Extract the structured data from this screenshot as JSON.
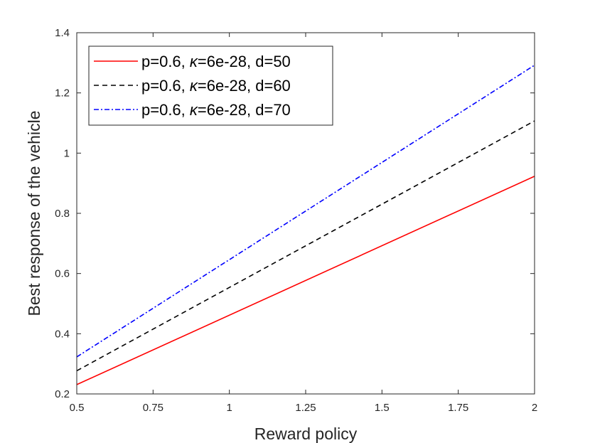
{
  "chart_data": {
    "type": "line",
    "title": "",
    "xlabel": "Reward policy",
    "ylabel": "Best response of the vehicle",
    "xlim": [
      0.5,
      2
    ],
    "ylim": [
      0.2,
      1.4
    ],
    "x_ticks": [
      "0.5",
      "0.75",
      "1",
      "1.25",
      "1.5",
      "1.75",
      "2"
    ],
    "y_ticks": [
      "0.2",
      "0.4",
      "0.6",
      "0.8",
      "1",
      "1.2",
      "1.4"
    ],
    "grid": false,
    "legend_position": "top-left",
    "series": [
      {
        "name": "p=0.6, κ=6e-28, d=50",
        "label_parts": [
          "p=0.6, ",
          "κ",
          "=6e-28, d=50"
        ],
        "color": "#ff0000",
        "style": "solid",
        "x": [
          0.5,
          2
        ],
        "y": [
          0.231,
          0.923
        ]
      },
      {
        "name": "p=0.6, κ=6e-28, d=60",
        "label_parts": [
          "p=0.6, ",
          "κ",
          "=6e-28, d=60"
        ],
        "color": "#000000",
        "style": "dashed",
        "x": [
          0.5,
          2
        ],
        "y": [
          0.277,
          1.107
        ]
      },
      {
        "name": "p=0.6, κ=6e-28, d=70",
        "label_parts": [
          "p=0.6, ",
          "κ",
          "=6e-28, d=70"
        ],
        "color": "#0000ff",
        "style": "dashdot",
        "x": [
          0.5,
          2
        ],
        "y": [
          0.323,
          1.292
        ]
      }
    ]
  }
}
